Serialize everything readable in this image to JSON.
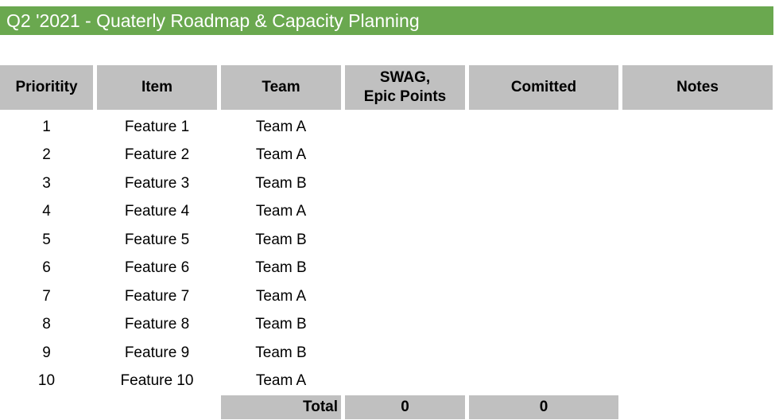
{
  "title": "Q2 '2021 - Quaterly Roadmap & Capacity Planning",
  "columns": {
    "priority": "Prioritity",
    "item": "Item",
    "team": "Team",
    "swag_line1": "SWAG,",
    "swag_line2": "Epic Points",
    "committed": "Comitted",
    "notes": "Notes"
  },
  "rows": [
    {
      "priority": "1",
      "item": "Feature 1",
      "team": "Team A",
      "swag": "",
      "committed": "",
      "notes": ""
    },
    {
      "priority": "2",
      "item": "Feature 2",
      "team": "Team A",
      "swag": "",
      "committed": "",
      "notes": ""
    },
    {
      "priority": "3",
      "item": "Feature 3",
      "team": "Team B",
      "swag": "",
      "committed": "",
      "notes": ""
    },
    {
      "priority": "4",
      "item": "Feature 4",
      "team": "Team A",
      "swag": "",
      "committed": "",
      "notes": ""
    },
    {
      "priority": "5",
      "item": "Feature 5",
      "team": "Team B",
      "swag": "",
      "committed": "",
      "notes": ""
    },
    {
      "priority": "6",
      "item": "Feature 6",
      "team": "Team B",
      "swag": "",
      "committed": "",
      "notes": ""
    },
    {
      "priority": "7",
      "item": "Feature 7",
      "team": "Team A",
      "swag": "",
      "committed": "",
      "notes": ""
    },
    {
      "priority": "8",
      "item": "Feature 8",
      "team": "Team B",
      "swag": "",
      "committed": "",
      "notes": ""
    },
    {
      "priority": "9",
      "item": "Feature 9",
      "team": "Team B",
      "swag": "",
      "committed": "",
      "notes": ""
    },
    {
      "priority": "10",
      "item": "Feature 10",
      "team": "Team A",
      "swag": "",
      "committed": "",
      "notes": ""
    }
  ],
  "totals": {
    "label": "Total",
    "swag": "0",
    "committed": "0"
  },
  "colors": {
    "title_bg": "#6aa84f",
    "header_bg": "#c0c0c0"
  }
}
